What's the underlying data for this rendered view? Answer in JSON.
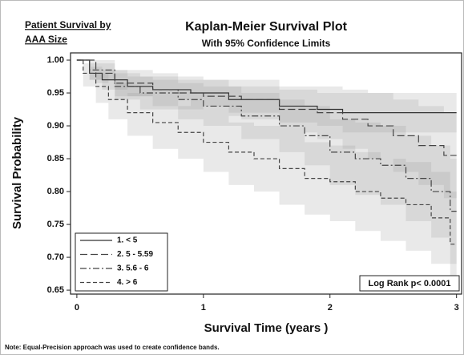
{
  "chart_data": {
    "type": "step",
    "header_note": [
      "Patient Survival by",
      "AAA Size"
    ],
    "title": "Kaplan-Meier Survival Plot",
    "subtitle": "With 95% Confidence Limits",
    "x_label": "Survival Time (years )",
    "y_label": "Survival Probability",
    "note": "Note: Equal-Precision approach was used to create confidence bands.",
    "annotation": "Log Rank p< 0.0001",
    "legend": "lower left",
    "band_color": "#9a9a9a",
    "xlim": [
      -0.05,
      3.04
    ],
    "xticks": [
      0,
      1,
      2,
      3
    ],
    "ylim": [
      0.644,
      1.011
    ],
    "yticks": [
      0.65,
      {
        "value": 0.7,
        "label": "0.70"
      },
      0.75,
      {
        "value": 0.8,
        "label": "0.80"
      },
      0.85,
      {
        "value": 0.9,
        "label": "0.90"
      },
      0.95,
      {
        "value": 1.0,
        "label": "1.00"
      }
    ],
    "series": [
      {
        "name": "1. < 5",
        "color": "#333333",
        "line_style": "solid",
        "x": [
          0,
          0.1,
          0.2,
          0.4,
          0.6,
          0.9,
          1.2,
          1.6,
          1.9,
          2.1,
          3.0
        ],
        "values": [
          1.0,
          0.98,
          0.97,
          0.96,
          0.955,
          0.95,
          0.94,
          0.93,
          0.925,
          0.92,
          0.92
        ],
        "lower": [
          1.0,
          0.97,
          0.955,
          0.945,
          0.94,
          0.93,
          0.92,
          0.905,
          0.9,
          0.89,
          0.88
        ],
        "upper": [
          1.0,
          0.99,
          0.985,
          0.975,
          0.97,
          0.97,
          0.96,
          0.955,
          0.95,
          0.95,
          0.955
        ]
      },
      {
        "name": "2. 5 - 5.59",
        "color": "#444444",
        "line_style": "longdash",
        "x": [
          0,
          0.15,
          0.3,
          0.6,
          0.8,
          1.0,
          1.3,
          1.6,
          1.9,
          2.1,
          2.3,
          2.5,
          2.7,
          2.9,
          3.0
        ],
        "values": [
          1.0,
          0.98,
          0.965,
          0.955,
          0.95,
          0.945,
          0.94,
          0.925,
          0.92,
          0.91,
          0.9,
          0.885,
          0.87,
          0.855,
          0.855
        ],
        "lower": [
          1.0,
          0.965,
          0.945,
          0.93,
          0.925,
          0.915,
          0.91,
          0.89,
          0.88,
          0.865,
          0.85,
          0.83,
          0.81,
          0.79,
          0.79
        ],
        "upper": [
          1.0,
          0.995,
          0.985,
          0.98,
          0.975,
          0.97,
          0.97,
          0.96,
          0.96,
          0.955,
          0.95,
          0.94,
          0.93,
          0.92,
          0.92
        ]
      },
      {
        "name": "3. 5.6 - 6",
        "color": "#444444",
        "line_style": "dashdot",
        "x": [
          0,
          0.1,
          0.3,
          0.5,
          0.8,
          1.0,
          1.3,
          1.6,
          1.8,
          2.0,
          2.2,
          2.4,
          2.6,
          2.8,
          2.95,
          3.0
        ],
        "values": [
          1.0,
          0.985,
          0.96,
          0.95,
          0.94,
          0.93,
          0.915,
          0.9,
          0.885,
          0.86,
          0.85,
          0.84,
          0.82,
          0.8,
          0.77,
          0.77
        ],
        "lower": [
          1.0,
          0.97,
          0.94,
          0.925,
          0.91,
          0.9,
          0.88,
          0.86,
          0.84,
          0.81,
          0.795,
          0.78,
          0.755,
          0.73,
          0.69,
          0.69
        ],
        "upper": [
          1.0,
          1.0,
          0.98,
          0.975,
          0.965,
          0.96,
          0.95,
          0.94,
          0.93,
          0.91,
          0.905,
          0.9,
          0.885,
          0.87,
          0.85,
          0.85
        ]
      },
      {
        "name": "4. > 6",
        "color": "#444444",
        "line_style": "dashed",
        "x": [
          0,
          0.05,
          0.15,
          0.25,
          0.4,
          0.6,
          0.8,
          1.0,
          1.2,
          1.4,
          1.6,
          1.8,
          2.0,
          2.2,
          2.4,
          2.6,
          2.8,
          2.95,
          3.0
        ],
        "values": [
          1.0,
          0.98,
          0.96,
          0.94,
          0.92,
          0.905,
          0.89,
          0.875,
          0.86,
          0.85,
          0.835,
          0.82,
          0.815,
          0.8,
          0.79,
          0.78,
          0.76,
          0.72,
          0.72
        ],
        "lower": [
          1.0,
          0.96,
          0.935,
          0.91,
          0.885,
          0.865,
          0.85,
          0.83,
          0.81,
          0.8,
          0.78,
          0.765,
          0.755,
          0.74,
          0.725,
          0.71,
          0.69,
          0.65,
          0.65
        ],
        "upper": [
          1.0,
          0.995,
          0.98,
          0.965,
          0.95,
          0.94,
          0.93,
          0.915,
          0.905,
          0.9,
          0.89,
          0.875,
          0.87,
          0.86,
          0.85,
          0.845,
          0.83,
          0.8,
          0.8
        ]
      }
    ]
  }
}
